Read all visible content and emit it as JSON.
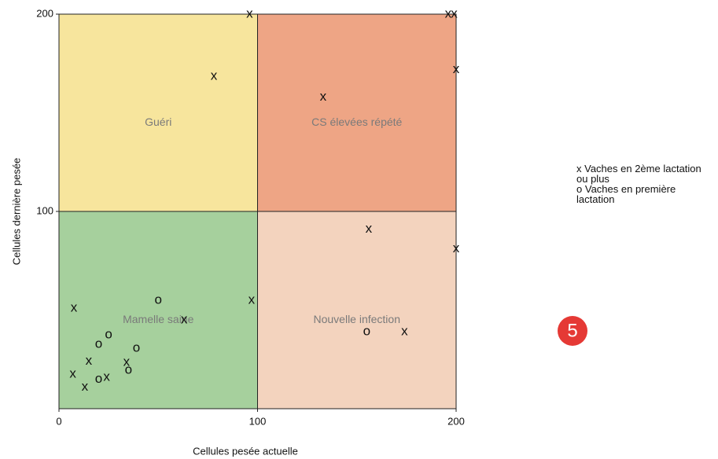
{
  "chart_data": {
    "type": "scatter",
    "xlabel": "Cellules pesée actuelle",
    "ylabel": "Cellules dernière pesée",
    "xlim": [
      0,
      200
    ],
    "ylim": [
      0,
      200
    ],
    "xticks": [
      0,
      100,
      200
    ],
    "yticks": [
      100,
      200
    ],
    "quadrants": [
      {
        "label": "Guéri",
        "color": "#f7e59d",
        "xrange": [
          0,
          100
        ],
        "yrange": [
          100,
          200
        ]
      },
      {
        "label": "CS élevées répété",
        "color": "#eea585",
        "xrange": [
          100,
          200
        ],
        "yrange": [
          100,
          200
        ]
      },
      {
        "label": "Mamelle saine",
        "color": "#a6d09d",
        "xrange": [
          0,
          100
        ],
        "yrange": [
          0,
          100
        ]
      },
      {
        "label": "Nouvelle infection",
        "color": "#f3d3be",
        "xrange": [
          100,
          200
        ],
        "yrange": [
          0,
          100
        ]
      }
    ],
    "series": [
      {
        "name": "Vaches en 2ème lactation ou plus",
        "marker": "x",
        "color": "#111111",
        "x": [
          96,
          196,
          199,
          78,
          133,
          200,
          156,
          200,
          97,
          7.5,
          63,
          174,
          15,
          7,
          13,
          24,
          34
        ],
        "values": [
          200,
          200,
          200,
          168.5,
          158,
          172,
          91,
          81,
          55,
          51,
          45,
          39,
          24,
          17.5,
          11,
          16,
          23.5
        ]
      },
      {
        "name": "Vaches en première lactation",
        "marker": "o",
        "color": "#111111",
        "x": [
          50,
          155,
          25,
          20,
          39,
          20,
          35
        ],
        "values": [
          55,
          39,
          37.5,
          32.7,
          30.7,
          15,
          19.5
        ]
      }
    ],
    "badge": "5"
  }
}
